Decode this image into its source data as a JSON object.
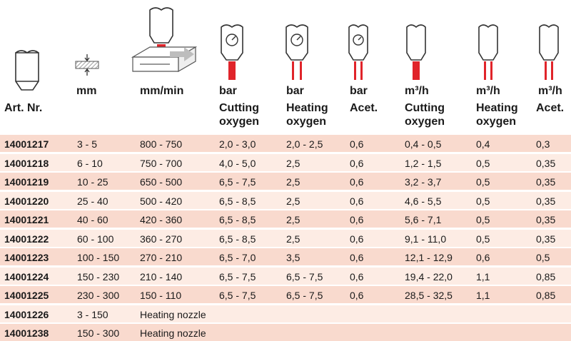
{
  "colors": {
    "row_odd": "#f9dace",
    "row_even": "#fdece4",
    "accent_red": "#e0242a"
  },
  "header": {
    "col1": {
      "line1": "Art. Nr.",
      "line2": ""
    },
    "col2": {
      "line1": "mm",
      "line2": ""
    },
    "col3": {
      "line1": "mm/min",
      "line2": ""
    },
    "col4": {
      "line1": "bar",
      "line2": "Cutting",
      "line3": "oxygen"
    },
    "col5": {
      "line1": "bar",
      "line2": "Heating",
      "line3": "oxygen"
    },
    "col6": {
      "line1": "bar",
      "line2": "Acet."
    },
    "col7": {
      "line1": "m³/h",
      "line2": "Cutting",
      "line3": "oxygen"
    },
    "col8": {
      "line1": "m³/h",
      "line2": "Heating",
      "line3": "oxygen"
    },
    "col9": {
      "line1": "m³/h",
      "line2": "Acet."
    }
  },
  "icons": [
    "nozzle-icon",
    "thickness-icon",
    "cutting-speed-icon",
    "cutting-oxygen-pressure-icon",
    "heating-oxygen-pressure-icon",
    "acetylene-pressure-icon",
    "cutting-oxygen-flow-icon",
    "heating-oxygen-flow-icon",
    "acetylene-flow-icon"
  ],
  "rows": [
    {
      "art": "14001217",
      "mm": "3 - 5",
      "speed": "800 - 750",
      "bar_cut": "2,0 - 3,0",
      "bar_heat": "2,0 - 2,5",
      "bar_acet": "0,6",
      "flow_cut": "0,4 - 0,5",
      "flow_heat": "0,4",
      "flow_acet": "0,3"
    },
    {
      "art": "14001218",
      "mm": "6 - 10",
      "speed": "750 - 700",
      "bar_cut": "4,0 - 5,0",
      "bar_heat": "2,5",
      "bar_acet": "0,6",
      "flow_cut": "1,2 - 1,5",
      "flow_heat": "0,5",
      "flow_acet": "0,35"
    },
    {
      "art": "14001219",
      "mm": "10 - 25",
      "speed": "650 - 500",
      "bar_cut": "6,5 - 7,5",
      "bar_heat": "2,5",
      "bar_acet": "0,6",
      "flow_cut": "3,2 - 3,7",
      "flow_heat": "0,5",
      "flow_acet": "0,35"
    },
    {
      "art": "14001220",
      "mm": "25 - 40",
      "speed": "500 - 420",
      "bar_cut": "6,5 - 8,5",
      "bar_heat": "2,5",
      "bar_acet": "0,6",
      "flow_cut": "4,6 - 5,5",
      "flow_heat": "0,5",
      "flow_acet": "0,35"
    },
    {
      "art": "14001221",
      "mm": "40 - 60",
      "speed": "420 - 360",
      "bar_cut": "6,5 - 8,5",
      "bar_heat": "2,5",
      "bar_acet": "0,6",
      "flow_cut": "5,6 - 7,1",
      "flow_heat": "0,5",
      "flow_acet": "0,35"
    },
    {
      "art": "14001222",
      "mm": "60 - 100",
      "speed": "360 - 270",
      "bar_cut": "6,5 - 8,5",
      "bar_heat": "2,5",
      "bar_acet": "0,6",
      "flow_cut": "9,1 - 11,0",
      "flow_heat": "0,5",
      "flow_acet": "0,35"
    },
    {
      "art": "14001223",
      "mm": "100 - 150",
      "speed": "270 - 210",
      "bar_cut": "6,5 - 7,0",
      "bar_heat": "3,5",
      "bar_acet": "0,6",
      "flow_cut": "12,1 - 12,9",
      "flow_heat": "0,6",
      "flow_acet": "0,5"
    },
    {
      "art": "14001224",
      "mm": "150 - 230",
      "speed": "210 - 140",
      "bar_cut": "6,5 - 7,5",
      "bar_heat": "6,5 - 7,5",
      "bar_acet": "0,6",
      "flow_cut": "19,4 - 22,0",
      "flow_heat": "1,1",
      "flow_acet": "0,85"
    },
    {
      "art": "14001225",
      "mm": "230 - 300",
      "speed": "150 - 110",
      "bar_cut": "6,5 - 7,5",
      "bar_heat": "6,5 - 7,5",
      "bar_acet": "0,6",
      "flow_cut": "28,5 - 32,5",
      "flow_heat": "1,1",
      "flow_acet": "0,85"
    },
    {
      "art": "14001226",
      "mm": "3 - 150",
      "speed": "Heating nozzle",
      "bar_cut": "",
      "bar_heat": "",
      "bar_acet": "",
      "flow_cut": "",
      "flow_heat": "",
      "flow_acet": ""
    },
    {
      "art": "14001238",
      "mm": "150 - 300",
      "speed": "Heating nozzle",
      "bar_cut": "",
      "bar_heat": "",
      "bar_acet": "",
      "flow_cut": "",
      "flow_heat": "",
      "flow_acet": ""
    }
  ]
}
